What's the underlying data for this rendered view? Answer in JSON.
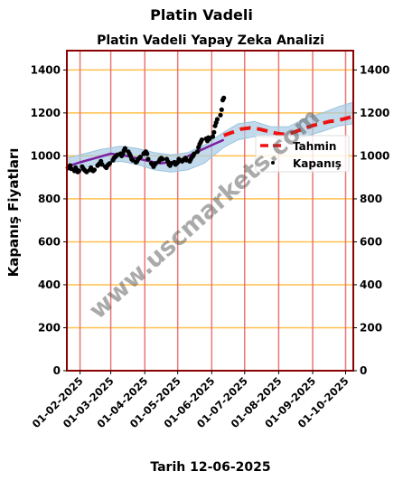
{
  "figure": {
    "title": "Platin Vadeli",
    "subtitle": "Platin Vadeli Yapay Zeka Analizi",
    "xlabel": "Tarih 12-06-2025",
    "ylabel": "Kapanış Fiyatları",
    "watermark": "www.uscmarkets.com"
  },
  "colors": {
    "grid_h": "#ffc04d",
    "grid_v": "#e87777",
    "frame": "#8b0000",
    "trend": "#7b1fa2",
    "band": "#a8cce4",
    "forecast": "#ee1111",
    "points": "#000000"
  },
  "chart_data": {
    "type": "line",
    "ylim": [
      0,
      1490
    ],
    "yticks": [
      0,
      200,
      400,
      600,
      800,
      1000,
      1200,
      1400
    ],
    "x_range": [
      "2025-01-20",
      "2025-10-08"
    ],
    "xticks": [
      "01-02-2025",
      "01-03-2025",
      "01-04-2025",
      "01-05-2025",
      "01-06-2025",
      "01-07-2025",
      "01-08-2025",
      "01-09-2025",
      "01-10-2025"
    ],
    "grid": true,
    "legend": {
      "position": "right",
      "entries": [
        "Tahmin",
        "Kapanış"
      ]
    },
    "series": [
      {
        "name": "Kapanış",
        "style": "points",
        "x": [
          "2025-01-21",
          "2025-01-22",
          "2025-01-23",
          "2025-01-24",
          "2025-01-27",
          "2025-01-28",
          "2025-01-29",
          "2025-01-30",
          "2025-01-31",
          "2025-02-03",
          "2025-02-04",
          "2025-02-05",
          "2025-02-06",
          "2025-02-07",
          "2025-02-10",
          "2025-02-11",
          "2025-02-12",
          "2025-02-13",
          "2025-02-14",
          "2025-02-17",
          "2025-02-18",
          "2025-02-19",
          "2025-02-20",
          "2025-02-21",
          "2025-02-24",
          "2025-02-25",
          "2025-02-26",
          "2025-02-27",
          "2025-02-28",
          "2025-03-03",
          "2025-03-04",
          "2025-03-05",
          "2025-03-06",
          "2025-03-07",
          "2025-03-10",
          "2025-03-11",
          "2025-03-12",
          "2025-03-13",
          "2025-03-14",
          "2025-03-17",
          "2025-03-18",
          "2025-03-19",
          "2025-03-20",
          "2025-03-21",
          "2025-03-24",
          "2025-03-25",
          "2025-03-26",
          "2025-03-27",
          "2025-03-28",
          "2025-03-31",
          "2025-04-01",
          "2025-04-02",
          "2025-04-03",
          "2025-04-04",
          "2025-04-07",
          "2025-04-08",
          "2025-04-09",
          "2025-04-10",
          "2025-04-11",
          "2025-04-14",
          "2025-04-15",
          "2025-04-16",
          "2025-04-17",
          "2025-04-21",
          "2025-04-22",
          "2025-04-23",
          "2025-04-24",
          "2025-04-25",
          "2025-04-28",
          "2025-04-29",
          "2025-04-30",
          "2025-05-01",
          "2025-05-02",
          "2025-05-05",
          "2025-05-06",
          "2025-05-07",
          "2025-05-08",
          "2025-05-09",
          "2025-05-12",
          "2025-05-13",
          "2025-05-14",
          "2025-05-15",
          "2025-05-16",
          "2025-05-19",
          "2025-05-20",
          "2025-05-21",
          "2025-05-22",
          "2025-05-23",
          "2025-05-27",
          "2025-05-28",
          "2025-05-29",
          "2025-05-30",
          "2025-06-02",
          "2025-06-03",
          "2025-06-04",
          "2025-06-05",
          "2025-06-06",
          "2025-06-09",
          "2025-06-10",
          "2025-06-11",
          "2025-06-12"
        ],
        "y": [
          945,
          950,
          955,
          940,
          930,
          945,
          935,
          925,
          930,
          950,
          940,
          935,
          930,
          925,
          935,
          945,
          935,
          930,
          935,
          955,
          960,
          965,
          975,
          960,
          950,
          945,
          955,
          960,
          965,
          980,
          990,
          995,
          1000,
          1005,
          1010,
          1000,
          1010,
          1025,
          1035,
          1020,
          1010,
          1000,
          985,
          980,
          970,
          975,
          985,
          990,
          995,
          1010,
          1015,
          1020,
          1010,
          985,
          965,
          960,
          950,
          960,
          965,
          975,
          985,
          990,
          985,
          985,
          975,
          960,
          955,
          965,
          970,
          960,
          965,
          970,
          985,
          975,
          980,
          985,
          990,
          980,
          975,
          985,
          995,
          1000,
          1010,
          1020,
          1040,
          1055,
          1065,
          1075,
          1080,
          1070,
          1085,
          1080,
          1090,
          1110,
          1140,
          1155,
          1170,
          1190,
          1215,
          1260,
          1270
        ]
      },
      {
        "name": "Tahmin",
        "style": "dashed",
        "x": [
          "2025-06-12",
          "2025-06-20",
          "2025-06-28",
          "2025-07-06",
          "2025-07-14",
          "2025-07-22",
          "2025-07-30",
          "2025-08-07",
          "2025-08-15",
          "2025-08-23",
          "2025-08-31",
          "2025-09-08",
          "2025-09-16",
          "2025-09-24",
          "2025-10-02",
          "2025-10-08"
        ],
        "y": [
          1095,
          1110,
          1125,
          1130,
          1125,
          1115,
          1105,
          1100,
          1110,
          1125,
          1140,
          1150,
          1160,
          1165,
          1175,
          1185
        ]
      },
      {
        "style": "line",
        "x": [
          "2025-01-20",
          "2025-02-01",
          "2025-02-15",
          "2025-03-01",
          "2025-03-15",
          "2025-04-01",
          "2025-04-15",
          "2025-05-01",
          "2025-05-15",
          "2025-06-01",
          "2025-06-12"
        ],
        "y": [
          950,
          970,
          990,
          1010,
          1000,
          980,
          965,
          975,
          1010,
          1050,
          1075
        ]
      },
      {
        "style": "band",
        "x": [
          "2025-01-20",
          "2025-02-05",
          "2025-02-20",
          "2025-03-10",
          "2025-03-25",
          "2025-04-10",
          "2025-04-25",
          "2025-05-10",
          "2025-05-25",
          "2025-06-12",
          "2025-06-25",
          "2025-07-10",
          "2025-07-25",
          "2025-08-10",
          "2025-08-25",
          "2025-09-10",
          "2025-09-25",
          "2025-10-08"
        ],
        "upper": [
          990,
          1010,
          1030,
          1045,
          1035,
          1015,
          1005,
          1015,
          1050,
          1110,
          1150,
          1160,
          1135,
          1135,
          1175,
          1200,
          1230,
          1250
        ],
        "lower": [
          930,
          945,
          965,
          975,
          960,
          935,
          925,
          935,
          965,
          1040,
          1075,
          1090,
          1085,
          1065,
          1090,
          1115,
          1140,
          1150
        ]
      }
    ]
  }
}
